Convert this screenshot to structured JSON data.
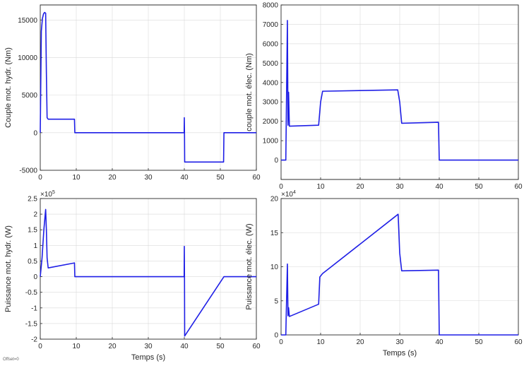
{
  "line_color": "#1f1fe6",
  "offset_label": "Offset=0",
  "chart_data": [
    {
      "type": "line",
      "xlabel": "",
      "ylabel": "Couple mot. hydr. (Nm)",
      "xlim": [
        0,
        60
      ],
      "ylim": [
        -5000,
        17000
      ],
      "xticks": [
        0,
        10,
        20,
        30,
        40,
        50,
        60
      ],
      "yticks": [
        -5000,
        0,
        5000,
        10000,
        15000
      ],
      "ytick_labels": [
        "-5000",
        "0",
        "5000",
        "10000",
        "15000"
      ],
      "exponent": "",
      "grid": true,
      "series": [
        {
          "x": [
            0,
            0.3,
            0.6,
            0.9,
            1.2,
            1.5,
            1.7,
            1.9,
            2.2,
            9.5,
            9.6,
            39.95,
            40.0,
            40.05,
            40.1,
            50.9,
            51.0,
            60
          ],
          "y": [
            0,
            13500,
            15200,
            15800,
            16000,
            15900,
            8000,
            2000,
            1800,
            1800,
            0,
            0,
            2000,
            0,
            -3900,
            -3900,
            0,
            0
          ]
        }
      ]
    },
    {
      "type": "line",
      "xlabel": "",
      "ylabel": "couple mot. élec. (Nm)",
      "xlim": [
        0,
        60
      ],
      "ylim": [
        -1000,
        8000
      ],
      "xticks": [
        0,
        10,
        20,
        30,
        40,
        50,
        60
      ],
      "yticks": [
        0,
        1000,
        2000,
        3000,
        4000,
        5000,
        6000,
        7000,
        8000
      ],
      "ytick_labels": [
        "0",
        "1000",
        "2000",
        "3000",
        "4000",
        "5000",
        "6000",
        "7000",
        "8000"
      ],
      "exponent": "",
      "grid": true,
      "series": [
        {
          "x": [
            0,
            1.2,
            1.3,
            1.6,
            1.75,
            1.9,
            2.1,
            9.5,
            10.0,
            10.5,
            29.5,
            30.0,
            30.5,
            39.8,
            40.0,
            60
          ],
          "y": [
            0,
            0,
            1800,
            7200,
            1800,
            3500,
            1750,
            1800,
            3000,
            3550,
            3620,
            3000,
            1900,
            1950,
            0,
            0
          ]
        }
      ]
    },
    {
      "type": "line",
      "xlabel": "Temps (s)",
      "ylabel": "Puissance mot. hydr. (W)",
      "xlim": [
        0,
        60
      ],
      "ylim": [
        -200000,
        250000
      ],
      "xticks": [
        0,
        10,
        20,
        30,
        40,
        50,
        60
      ],
      "yticks": [
        -200000,
        -150000,
        -100000,
        -50000,
        0,
        50000,
        100000,
        150000,
        200000,
        250000
      ],
      "ytick_labels": [
        "-2",
        "-1.5",
        "-1",
        "-0.5",
        "0",
        "0.5",
        "1",
        "1.5",
        "2",
        "2.5"
      ],
      "exponent": "5",
      "grid": true,
      "series": [
        {
          "x": [
            0,
            0.5,
            1.0,
            1.5,
            1.7,
            1.9,
            2.2,
            9.5,
            9.6,
            39.95,
            40.0,
            40.05,
            40.1,
            51.0,
            60
          ],
          "y": [
            0,
            60000,
            150000,
            215000,
            150000,
            60000,
            28000,
            44000,
            0,
            0,
            97000,
            0,
            -190000,
            0,
            0
          ]
        }
      ]
    },
    {
      "type": "line",
      "xlabel": "Temps (s)",
      "ylabel": "Puissance mot. élec. (W)",
      "xlim": [
        0,
        60
      ],
      "ylim": [
        0,
        200000
      ],
      "xticks": [
        0,
        10,
        20,
        30,
        40,
        50,
        60
      ],
      "yticks": [
        0,
        50000,
        100000,
        150000,
        200000
      ],
      "ytick_labels": [
        "0",
        "5",
        "10",
        "15",
        "20"
      ],
      "exponent": "4",
      "grid": true,
      "series": [
        {
          "x": [
            0,
            1.2,
            1.3,
            1.6,
            1.75,
            1.9,
            2.1,
            9.5,
            9.8,
            10.5,
            29.6,
            30.0,
            30.5,
            39.8,
            40.0,
            60
          ],
          "y": [
            0,
            0,
            28000,
            104000,
            28000,
            40000,
            27000,
            45000,
            85000,
            90000,
            177000,
            120000,
            94000,
            95000,
            0,
            0
          ]
        }
      ]
    }
  ]
}
